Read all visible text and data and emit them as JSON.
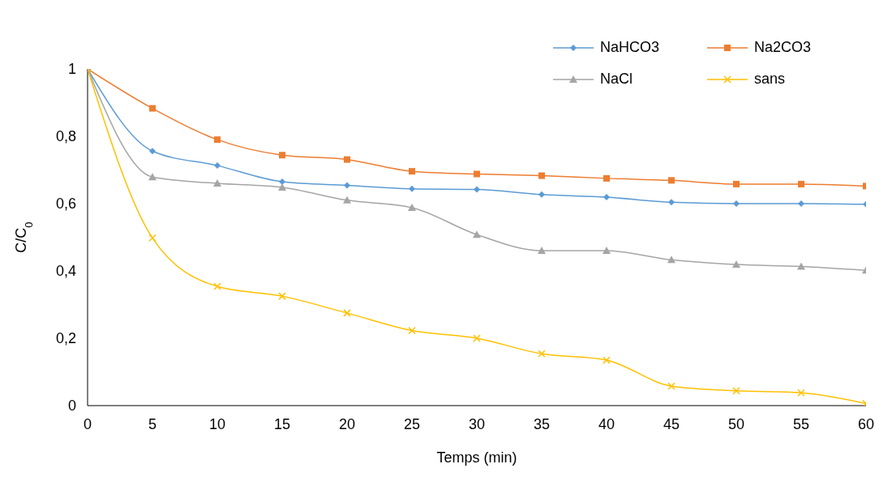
{
  "chart_data": {
    "type": "line",
    "xlabel": "Temps (min)",
    "ylabel": "C/C$_{0}$",
    "x": [
      0,
      5,
      10,
      15,
      20,
      25,
      30,
      35,
      40,
      45,
      50,
      55,
      60
    ],
    "series": [
      {
        "name": "NaHCO3",
        "color": "#5b9bd5",
        "marker": "diamond",
        "values": [
          1,
          0.756,
          0.713,
          0.665,
          0.654,
          0.644,
          0.642,
          0.627,
          0.619,
          0.604,
          0.6,
          0.6,
          0.598
        ]
      },
      {
        "name": "Na2CO3",
        "color": "#ed7d31",
        "marker": "square",
        "values": [
          1,
          0.883,
          0.79,
          0.744,
          0.731,
          0.696,
          0.688,
          0.683,
          0.675,
          0.669,
          0.658,
          0.658,
          0.652
        ]
      },
      {
        "name": "NaCl",
        "color": "#a5a5a5",
        "marker": "triangle",
        "values": [
          1,
          0.679,
          0.66,
          0.648,
          0.61,
          0.588,
          0.508,
          0.46,
          0.46,
          0.433,
          0.419,
          0.413,
          0.402
        ]
      },
      {
        "name": "sans",
        "color": "#ffc000",
        "marker": "cross",
        "values": [
          1,
          0.498,
          0.354,
          0.325,
          0.275,
          0.223,
          0.2,
          0.154,
          0.135,
          0.058,
          0.044,
          0.038,
          0.006
        ]
      }
    ],
    "xlim": [
      0,
      60
    ],
    "xticks": [
      0,
      5,
      10,
      15,
      20,
      25,
      30,
      35,
      40,
      45,
      50,
      55,
      60
    ],
    "ylim": [
      0,
      1
    ],
    "yticks": [
      0,
      {
        "value": 0.2,
        "label": "0,2"
      },
      {
        "value": 0.4,
        "label": "0,4"
      },
      {
        "value": 0.6,
        "label": "0,6"
      },
      {
        "value": 0.8,
        "label": "0,8"
      },
      1
    ],
    "grid": false,
    "legend": "top right",
    "line_style": "solid"
  }
}
